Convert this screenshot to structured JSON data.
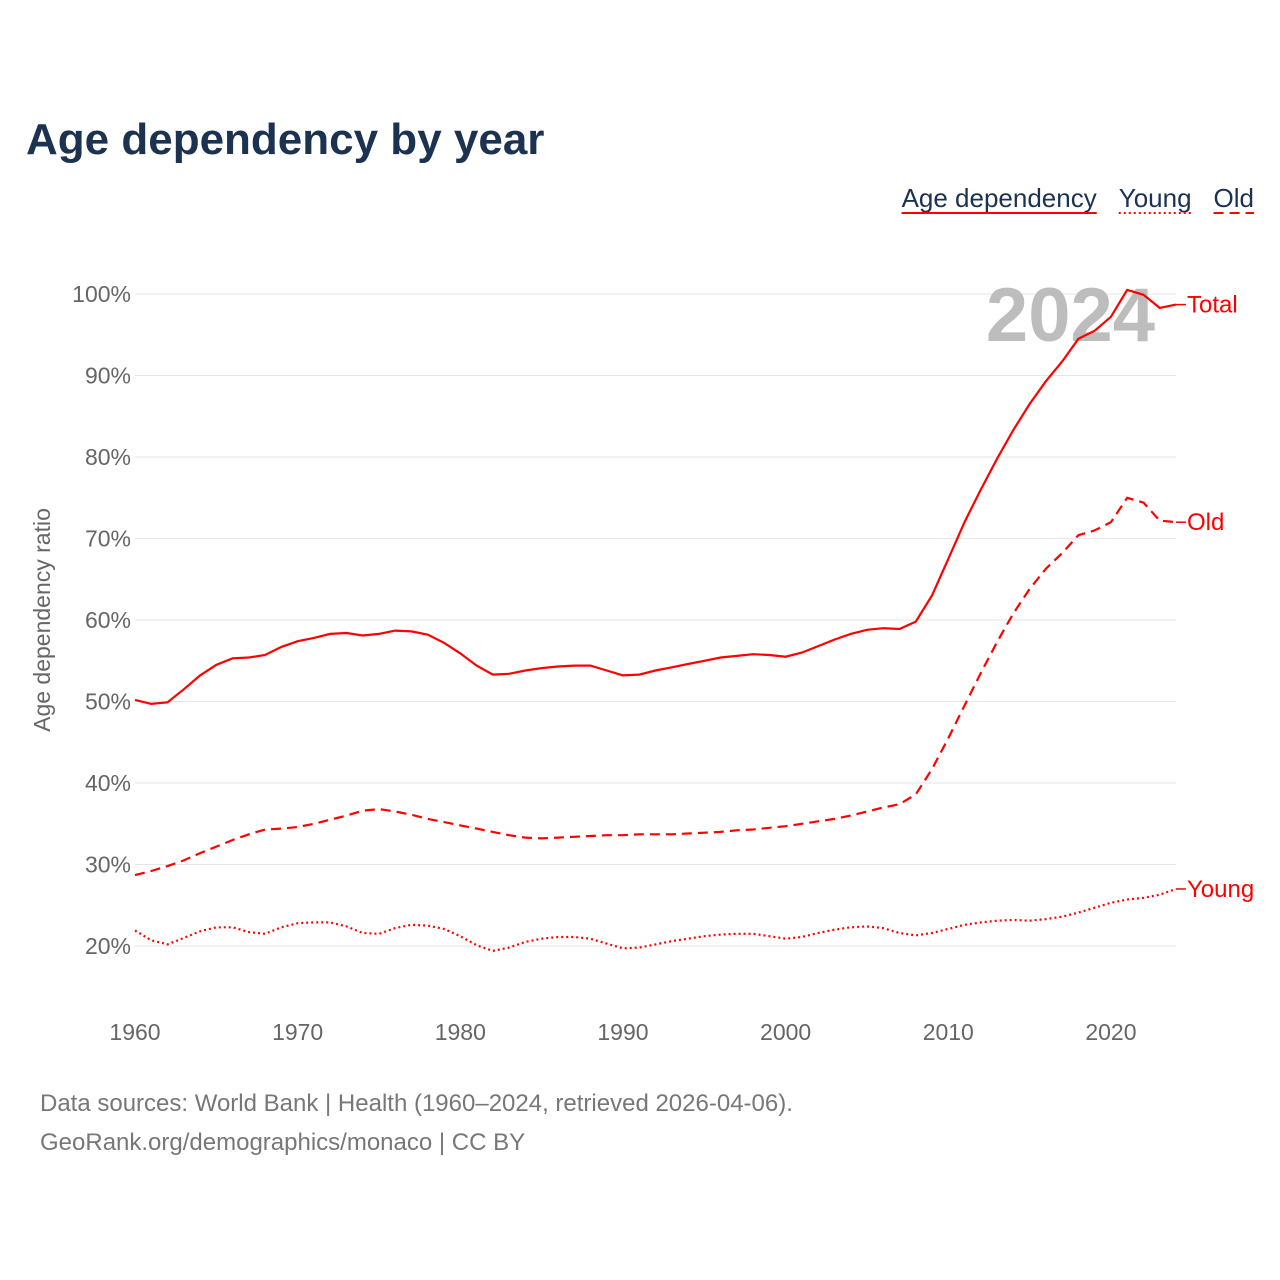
{
  "chart_data": {
    "type": "line",
    "title": "Age dependency by year",
    "xlabel": "",
    "ylabel": "Age dependency ratio",
    "xlim": [
      1960,
      2024
    ],
    "ylim": [
      20,
      100
    ],
    "yticks": [
      20,
      30,
      40,
      50,
      60,
      70,
      80,
      90,
      100
    ],
    "ytick_labels": [
      "20%",
      "30%",
      "40%",
      "50%",
      "60%",
      "70%",
      "80%",
      "90%",
      "100%"
    ],
    "xticks": [
      1960,
      1970,
      1980,
      1990,
      2000,
      2010,
      2020
    ],
    "xtick_labels": [
      "1960",
      "1970",
      "1980",
      "1990",
      "2000",
      "2010",
      "2020"
    ],
    "grid": true,
    "legend_position": "top-right",
    "year_label": "2024",
    "color": "#ff0000",
    "start_year": 1960,
    "series": [
      {
        "name": "Age dependency",
        "end_label": "Total",
        "dash": "solid",
        "values": [
          50.2,
          49.7,
          49.9,
          51.5,
          53.2,
          54.5,
          55.3,
          55.4,
          55.7,
          56.7,
          57.4,
          57.8,
          58.3,
          58.4,
          58.1,
          58.3,
          58.7,
          58.6,
          58.2,
          57.2,
          55.9,
          54.4,
          53.3,
          53.4,
          53.8,
          54.1,
          54.3,
          54.4,
          54.4,
          53.8,
          53.2,
          53.3,
          53.8,
          54.2,
          54.6,
          55.0,
          55.4,
          55.6,
          55.8,
          55.7,
          55.5,
          56.0,
          56.8,
          57.6,
          58.3,
          58.8,
          59.0,
          58.9,
          59.8,
          63.0,
          67.5,
          72.0,
          76.0,
          79.8,
          83.3,
          86.5,
          89.3,
          91.7,
          94.5,
          95.5,
          97.2,
          100.5,
          99.9,
          98.3,
          98.7
        ]
      },
      {
        "name": "Young",
        "end_label": "Young",
        "dash": "dotted",
        "values": [
          21.9,
          20.7,
          20.2,
          21.0,
          21.8,
          22.3,
          22.3,
          21.7,
          21.5,
          22.3,
          22.8,
          22.9,
          22.9,
          22.4,
          21.6,
          21.5,
          22.2,
          22.6,
          22.5,
          22.1,
          21.2,
          20.1,
          19.4,
          19.8,
          20.5,
          20.9,
          21.1,
          21.1,
          20.9,
          20.3,
          19.7,
          19.8,
          20.2,
          20.6,
          20.9,
          21.2,
          21.4,
          21.5,
          21.5,
          21.2,
          20.9,
          21.1,
          21.6,
          22.0,
          22.3,
          22.4,
          22.2,
          21.6,
          21.3,
          21.6,
          22.1,
          22.6,
          22.9,
          23.1,
          23.2,
          23.1,
          23.3,
          23.6,
          24.1,
          24.7,
          25.3,
          25.7,
          25.9,
          26.3,
          27.0
        ]
      },
      {
        "name": "Old",
        "end_label": "Old",
        "dash": "dashed",
        "values": [
          28.7,
          29.2,
          29.8,
          30.5,
          31.4,
          32.2,
          33.0,
          33.7,
          34.3,
          34.4,
          34.6,
          35.0,
          35.5,
          36.0,
          36.6,
          36.8,
          36.5,
          36.1,
          35.6,
          35.2,
          34.8,
          34.4,
          34.0,
          33.6,
          33.3,
          33.2,
          33.3,
          33.4,
          33.5,
          33.6,
          33.6,
          33.7,
          33.7,
          33.7,
          33.8,
          33.9,
          34.0,
          34.2,
          34.3,
          34.5,
          34.7,
          35.0,
          35.3,
          35.6,
          36.0,
          36.5,
          37.0,
          37.4,
          38.6,
          41.7,
          45.5,
          49.5,
          53.5,
          57.3,
          60.8,
          63.8,
          66.3,
          68.2,
          70.4,
          71.0,
          72.0,
          75.0,
          74.4,
          72.2,
          72.0
        ]
      }
    ],
    "source_lines": [
      "Data sources: World Bank | Health (1960–2024, retrieved 2026-04-06).",
      "GeoRank.org/demographics/monaco | CC BY"
    ]
  }
}
